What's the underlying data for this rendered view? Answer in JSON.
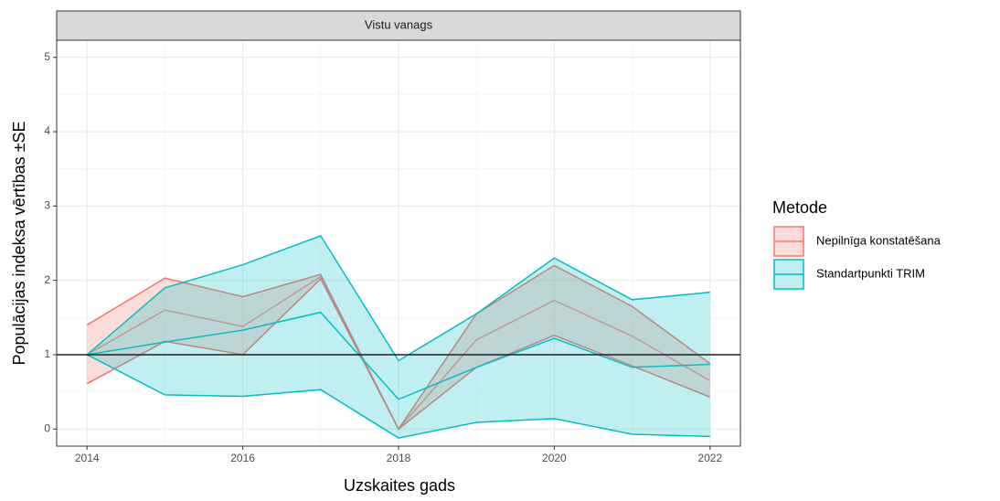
{
  "chart_data": {
    "type": "ribbon-line",
    "strip_title": "Vistu vanags",
    "x_label": "Uzskaites gads",
    "y_label": "Populācijas indeksa vērtības ±SE",
    "legend_title": "Metode",
    "x": [
      2014,
      2015,
      2016,
      2017,
      2018,
      2019,
      2020,
      2021,
      2022
    ],
    "series": [
      {
        "name": "Nepilnīga konstatēšana",
        "color": "#F8766D",
        "values": [
          1.0,
          1.6,
          1.38,
          2.05,
          0.0,
          1.2,
          1.73,
          1.25,
          0.65
        ],
        "lower": [
          0.61,
          1.18,
          1.0,
          2.02,
          0.0,
          0.83,
          1.26,
          0.85,
          0.43
        ],
        "upper": [
          1.4,
          2.03,
          1.78,
          2.08,
          0.0,
          1.55,
          2.2,
          1.65,
          0.88
        ]
      },
      {
        "name": "Standartpunkti TRIM",
        "color": "#00BFC4",
        "values": [
          1.0,
          1.17,
          1.33,
          1.57,
          0.4,
          0.83,
          1.22,
          0.83,
          0.87
        ],
        "lower": [
          1.0,
          0.46,
          0.44,
          0.53,
          -0.12,
          0.09,
          0.14,
          -0.07,
          -0.1
        ],
        "upper": [
          1.0,
          1.9,
          2.21,
          2.6,
          0.92,
          1.55,
          2.3,
          1.74,
          1.84
        ]
      }
    ],
    "reference_line": 1,
    "xlim": [
      2013.61,
      2022.39
    ],
    "xticks": [
      2014,
      2016,
      2018,
      2020,
      2022
    ],
    "ylim": [
      -0.23,
      5.23
    ],
    "yticks": [
      0,
      1,
      2,
      3,
      4,
      5
    ],
    "grid": true,
    "legend_position": "right"
  }
}
